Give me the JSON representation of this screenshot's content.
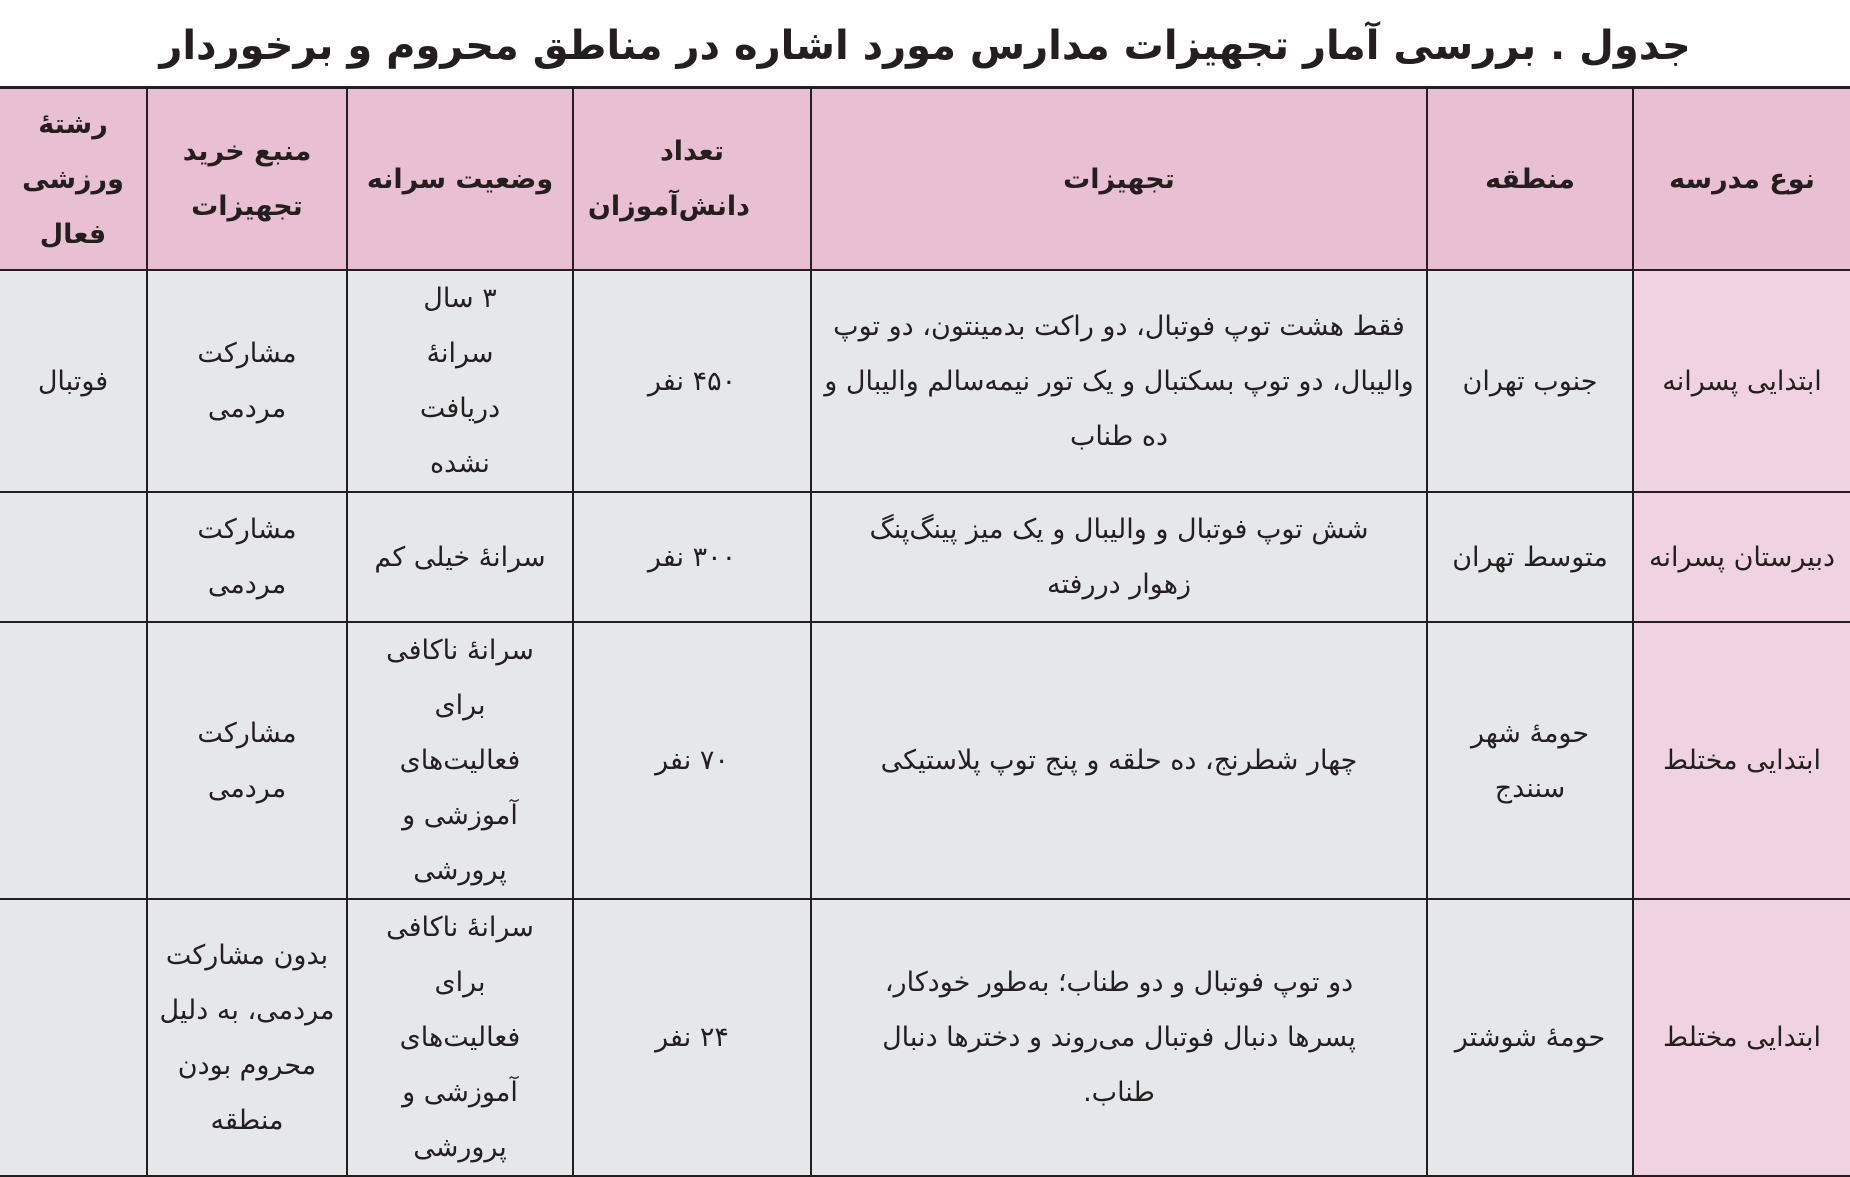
{
  "title": "جدول . بررسی آمار تجهیزات مدارس مورد اشاره در مناطق محروم و برخوردار",
  "colors": {
    "header_bg": "#e8bfd3",
    "first_col_bg": "#efd3e2",
    "body_bg": "#e6e7e8"
  },
  "headers": [
    "نوع مدرسه",
    "منطقه",
    "تجهیزات",
    "تعداد دانش‌آموزان",
    "وضعیت سرانه",
    "منبع خرید تجهیزات",
    "رشتهٔ ورزشی فعال"
  ],
  "rows": [
    [
      "ابتدایی پسرانه",
      "جنوب تهران",
      "فقط هشت توپ فوتبال، دو راکت بدمینتون، دو توپ والیبال، دو توپ بسکتبال و یک تور نیمه‌سالم والیبال و ده طناب",
      "۴۵۰ نفر",
      "۳ سال سرانهٔ دریافت نشده",
      "مشارکت مردمی",
      "فوتبال"
    ],
    [
      "دبیرستان پسرانه",
      "متوسط تهران",
      "شش توپ فوتبال و والیبال و یک میز پینگ‌پنگ زهوار دررفته",
      "۳۰۰ نفر",
      "سرانهٔ خیلی کم",
      "مشارکت مردمی",
      ""
    ],
    [
      "ابتدایی مختلط",
      "حومهٔ شهر سنندج",
      "چهار شطرنج، ده حلقه و پنج توپ پلاستیکی",
      "۷۰ نفر",
      "سرانهٔ ناکافی برای فعالیت‌های آموزشی و پرورشی",
      "مشارکت مردمی",
      ""
    ],
    [
      "ابتدایی مختلط",
      "حومهٔ شوشتر",
      "دو توپ فوتبال و دو طناب؛ به‌طور خودکار، پسرها دنبال فوتبال می‌روند و دخترها دنبال طناب.",
      "۲۴ نفر",
      "سرانهٔ ناکافی برای فعالیت‌های آموزشی و پرورشی",
      "بدون مشارکت مردمی، به دلیل محروم بودن منطقه",
      ""
    ]
  ]
}
